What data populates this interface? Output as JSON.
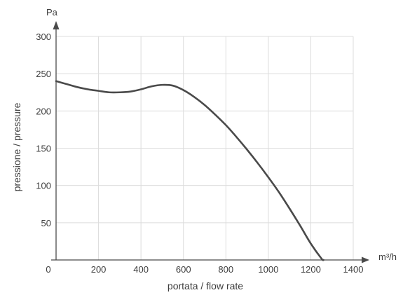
{
  "chart_data": {
    "type": "line",
    "x_unit": "m³/h",
    "y_unit": "Pa",
    "xlabel": "portata / flow rate",
    "ylabel": "pressione / pressure",
    "xlim": [
      0,
      1400
    ],
    "ylim": [
      0,
      300
    ],
    "x_ticks": [
      0,
      200,
      400,
      600,
      800,
      1000,
      1200,
      1400
    ],
    "y_ticks": [
      50,
      100,
      150,
      200,
      250,
      300
    ],
    "grid": true,
    "colors": {
      "curve": "#4a4a4a",
      "axis": "#4a4a4a",
      "grid": "#dcdcdc"
    },
    "series": [
      {
        "points": [
          [
            0,
            240
          ],
          [
            50,
            236
          ],
          [
            100,
            232
          ],
          [
            150,
            229
          ],
          [
            200,
            227
          ],
          [
            250,
            225
          ],
          [
            300,
            225
          ],
          [
            350,
            226
          ],
          [
            400,
            229
          ],
          [
            450,
            233
          ],
          [
            500,
            235
          ],
          [
            550,
            234
          ],
          [
            600,
            228
          ],
          [
            650,
            219
          ],
          [
            700,
            208
          ],
          [
            750,
            195
          ],
          [
            800,
            181
          ],
          [
            850,
            165
          ],
          [
            900,
            148
          ],
          [
            950,
            130
          ],
          [
            1000,
            111
          ],
          [
            1050,
            91
          ],
          [
            1100,
            69
          ],
          [
            1150,
            46
          ],
          [
            1200,
            22
          ],
          [
            1250,
            2
          ],
          [
            1260,
            0
          ]
        ]
      }
    ]
  }
}
